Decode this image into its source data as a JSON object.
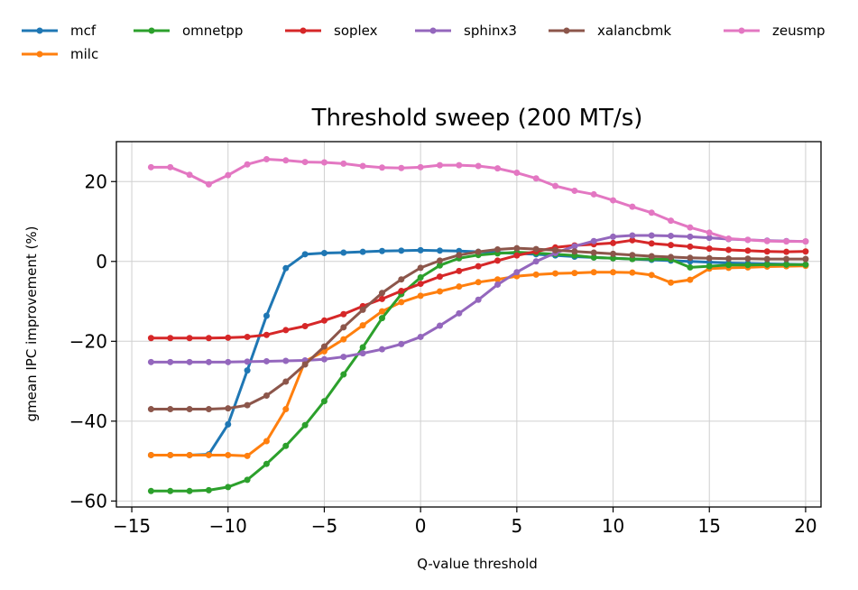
{
  "chart_data": {
    "type": "line",
    "title": "Threshold sweep (200 MT/s)",
    "xlabel": "Q-value threshold",
    "ylabel": "gmean IPC improvement (%)",
    "xlim": [
      -15.8,
      20.8
    ],
    "ylim": [
      -61.5,
      30.0
    ],
    "xticks": [
      -15,
      -10,
      -5,
      0,
      5,
      10,
      15,
      20
    ],
    "yticks": [
      -60,
      -40,
      -20,
      0,
      20
    ],
    "grid": true,
    "legend_position": "top, above plot",
    "x": [
      -14,
      -13,
      -12,
      -11,
      -10,
      -9,
      -8,
      -7,
      -6,
      -5,
      -4,
      -3,
      -2,
      -1,
      0,
      1,
      2,
      3,
      4,
      5,
      6,
      7,
      8,
      9,
      10,
      11,
      12,
      13,
      14,
      15,
      16,
      17,
      18,
      19,
      20
    ],
    "series": [
      {
        "name": "mcf",
        "color": "#1f77b4",
        "values": [
          -48.5,
          -48.5,
          -48.5,
          -48.3,
          -40.8,
          -27.3,
          -13.6,
          -1.7,
          1.8,
          2.1,
          2.2,
          2.4,
          2.6,
          2.7,
          2.8,
          2.7,
          2.6,
          2.4,
          2.2,
          2.0,
          1.8,
          1.5,
          1.2,
          1.0,
          0.8,
          0.6,
          0.4,
          0.2,
          0.0,
          -0.2,
          -0.4,
          -0.5,
          -0.6,
          -0.7,
          -0.8
        ]
      },
      {
        "name": "milc",
        "color": "#ff7f0e",
        "values": [
          -48.5,
          -48.5,
          -48.5,
          -48.5,
          -48.5,
          -48.7,
          -45.0,
          -37.0,
          -25.0,
          -22.5,
          -19.5,
          -16.0,
          -12.5,
          -10.2,
          -8.6,
          -7.5,
          -6.3,
          -5.2,
          -4.5,
          -3.7,
          -3.3,
          -3.0,
          -2.9,
          -2.7,
          -2.7,
          -2.8,
          -3.4,
          -5.3,
          -4.6,
          -1.8,
          -1.6,
          -1.5,
          -1.3,
          -1.2,
          -1.1
        ]
      },
      {
        "name": "omnetpp",
        "color": "#2ca02c",
        "values": [
          -57.5,
          -57.5,
          -57.5,
          -57.3,
          -56.5,
          -54.7,
          -50.7,
          -46.2,
          -41.0,
          -35.0,
          -28.3,
          -21.5,
          -14.2,
          -8.2,
          -4.0,
          -1.0,
          0.8,
          1.6,
          2.0,
          2.3,
          2.1,
          1.8,
          1.5,
          1.0,
          0.8,
          0.6,
          0.6,
          0.5,
          -1.5,
          -1.2,
          -0.9,
          -0.9,
          -0.8,
          -0.8,
          -0.8
        ]
      },
      {
        "name": "soplex",
        "color": "#d62728",
        "values": [
          -19.2,
          -19.2,
          -19.2,
          -19.2,
          -19.1,
          -18.9,
          -18.4,
          -17.2,
          -16.2,
          -14.8,
          -13.2,
          -11.2,
          -9.4,
          -7.4,
          -5.6,
          -3.8,
          -2.4,
          -1.2,
          0.2,
          1.5,
          2.5,
          3.5,
          4.0,
          4.3,
          4.6,
          5.3,
          4.5,
          4.1,
          3.7,
          3.2,
          2.9,
          2.7,
          2.5,
          2.4,
          2.5
        ]
      },
      {
        "name": "sphinx3",
        "color": "#9467bd",
        "values": [
          -25.2,
          -25.2,
          -25.2,
          -25.2,
          -25.2,
          -25.1,
          -25.0,
          -24.9,
          -24.8,
          -24.5,
          -23.9,
          -23.0,
          -22.0,
          -20.7,
          -18.9,
          -16.1,
          -13.0,
          -9.6,
          -5.8,
          -2.7,
          0.0,
          2.1,
          3.8,
          5.1,
          6.2,
          6.5,
          6.5,
          6.4,
          6.2,
          5.9,
          5.6,
          5.4,
          5.2,
          5.1,
          5.0
        ]
      },
      {
        "name": "xalancbmk",
        "color": "#8c564b",
        "values": [
          -37.0,
          -37.0,
          -37.0,
          -37.0,
          -36.8,
          -36.0,
          -33.6,
          -30.1,
          -25.8,
          -21.3,
          -16.5,
          -12.1,
          -7.9,
          -4.5,
          -1.6,
          0.2,
          1.6,
          2.4,
          3.0,
          3.3,
          3.1,
          2.8,
          2.5,
          2.2,
          1.9,
          1.6,
          1.3,
          1.1,
          0.9,
          0.8,
          0.7,
          0.7,
          0.6,
          0.6,
          0.6
        ]
      },
      {
        "name": "zeusmp",
        "color": "#e377c2",
        "values": [
          23.6,
          23.6,
          21.7,
          19.3,
          21.6,
          24.3,
          25.6,
          25.3,
          24.9,
          24.8,
          24.5,
          23.9,
          23.5,
          23.4,
          23.6,
          24.1,
          24.1,
          23.9,
          23.3,
          22.2,
          20.8,
          18.9,
          17.7,
          16.8,
          15.3,
          13.7,
          12.2,
          10.2,
          8.5,
          7.2,
          5.7,
          5.4,
          5.1,
          5.0,
          5.0
        ]
      }
    ]
  }
}
